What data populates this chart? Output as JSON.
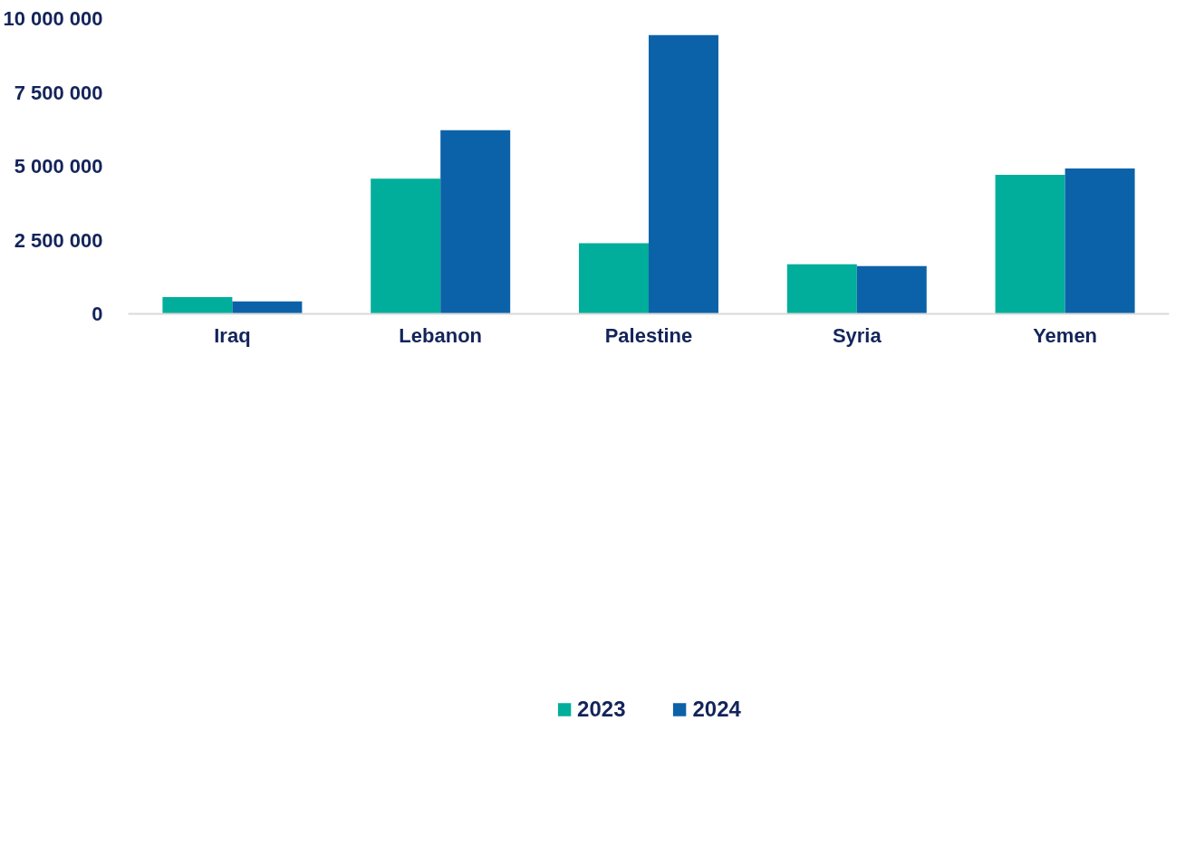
{
  "chart_data": {
    "type": "bar",
    "categories": [
      "Iraq",
      "Lebanon",
      "Palestine",
      "Syria",
      "Yemen"
    ],
    "series": [
      {
        "name": "2023",
        "color": "#00ae9b",
        "values": [
          570000,
          4580000,
          2390000,
          1680000,
          4710000
        ]
      },
      {
        "name": "2024",
        "color": "#0c62a8",
        "values": [
          420000,
          6220000,
          9440000,
          1620000,
          4920000
        ]
      }
    ],
    "ylim": [
      0,
      10000000
    ],
    "yticks": [
      {
        "value": 0,
        "label": "0"
      },
      {
        "value": 2500000,
        "label": "2 500 000"
      },
      {
        "value": 5000000,
        "label": "5 000 000"
      },
      {
        "value": 7500000,
        "label": "7 500 000"
      },
      {
        "value": 10000000,
        "label": "10 000 000"
      }
    ],
    "grid": false,
    "legend": "bottom"
  }
}
